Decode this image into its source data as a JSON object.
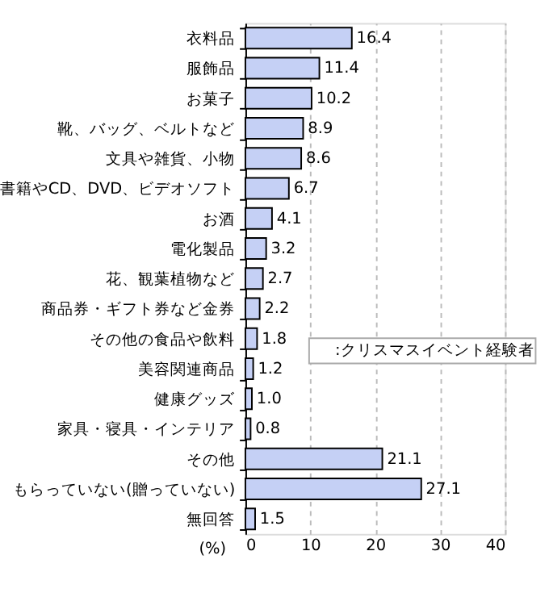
{
  "chart_data": {
    "type": "bar",
    "orientation": "horizontal",
    "categories": [
      "衣料品",
      "服飾品",
      "お菓子",
      "靴、バッグ、ベルトなど",
      "文具や雑貨、小物",
      "書籍やCD、DVD、ビデオソフト",
      "お酒",
      "電化製品",
      "花、観葉植物など",
      "商品券・ギフト券など金券",
      "その他の食品や飲料",
      "美容関連商品",
      "健康グッズ",
      "家具・寝具・インテリア",
      "その他",
      "もらっていない(贈っていない)",
      "無回答"
    ],
    "series": [
      {
        "name": ":クリスマスイベント経験者",
        "color": "#c5d0f5",
        "values": [
          16.4,
          11.4,
          10.2,
          8.9,
          8.6,
          6.7,
          4.1,
          3.2,
          2.7,
          2.2,
          1.8,
          1.2,
          1.0,
          0.8,
          21.1,
          27.1,
          1.5
        ]
      }
    ],
    "value_labels": [
      "16.4",
      "11.4",
      "10.2",
      "8.9",
      "8.6",
      "6.7",
      "4.1",
      "3.2",
      "2.7",
      "2.2",
      "1.8",
      "1.2",
      "1.0",
      "0.8",
      "21.1",
      "27.1",
      "1.5"
    ],
    "xlabel": "(%)",
    "xlim": [
      0,
      40
    ],
    "xticks": [
      0,
      10,
      20,
      30,
      40
    ],
    "grid": "x",
    "legend": "right"
  }
}
